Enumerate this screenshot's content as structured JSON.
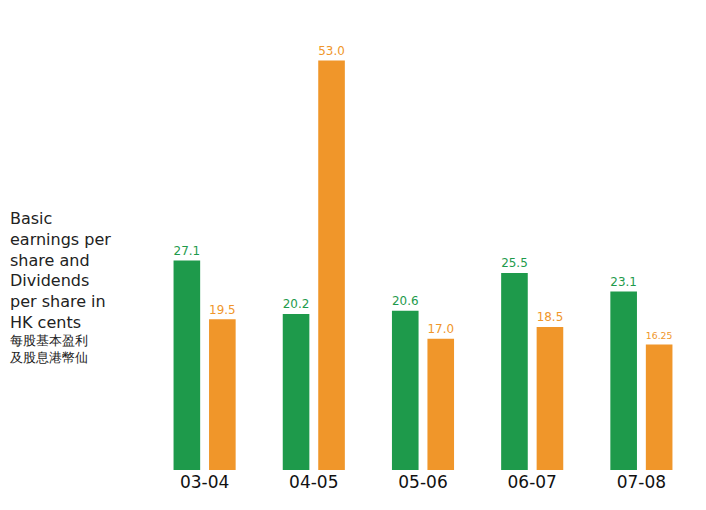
{
  "chart_data": {
    "type": "bar",
    "ylabel": "Basic earnings per share and Dividends per share in HK cents",
    "ylabel_zh": "每股基本盈利及股息港幣仙",
    "categories": [
      "03-04",
      "04-05",
      "05-06",
      "06-07",
      "07-08"
    ],
    "series": [
      {
        "color": "#1e9a4b",
        "values": [
          27.1,
          20.2,
          20.6,
          25.5,
          23.1
        ],
        "value_labels": [
          "27.1",
          "20.2",
          "20.6",
          "25.5",
          "23.1"
        ]
      },
      {
        "color": "#f0962a",
        "values": [
          19.5,
          53.0,
          17.0,
          18.5,
          16.25
        ],
        "value_labels": [
          "19.5",
          "53.0",
          "17.0",
          "18.5",
          "16.25"
        ]
      }
    ],
    "ylim": [
      0,
      55
    ],
    "data_labels": true,
    "tick_labels": "x",
    "grid": false
  }
}
